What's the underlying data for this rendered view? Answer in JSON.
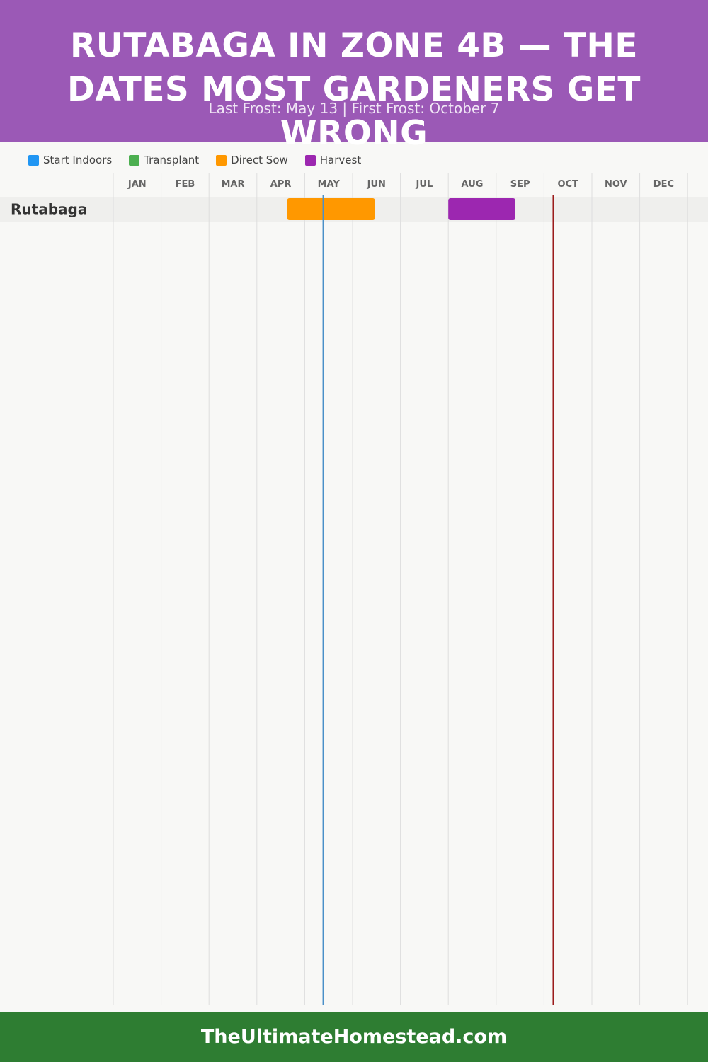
{
  "header": {
    "title": "RUTABAGA IN ZONE 4B — THE DATES MOST GARDENERS GET WRONG",
    "subtitle": "Last Frost: May 13 | First Frost: October 7"
  },
  "legend": [
    {
      "label": "Start Indoors",
      "color": "#2196f3"
    },
    {
      "label": "Transplant",
      "color": "#4caf50"
    },
    {
      "label": "Direct Sow",
      "color": "#ff9800"
    },
    {
      "label": "Harvest",
      "color": "#9c27b0"
    }
  ],
  "chart_data": {
    "type": "gantt",
    "months": [
      "JAN",
      "FEB",
      "MAR",
      "APR",
      "MAY",
      "JUN",
      "JUL",
      "AUG",
      "SEP",
      "OCT",
      "NOV",
      "DEC"
    ],
    "rows": [
      {
        "crop": "Rutabaga",
        "bars": [
          {
            "phase": "Direct Sow",
            "start": "Apr 20",
            "end": "Jun 15",
            "color": "#ff9800"
          },
          {
            "phase": "Harvest",
            "start": "Aug 1",
            "end": "Sep 13",
            "color": "#9c27b0"
          }
        ]
      }
    ],
    "markers": [
      {
        "name": "Last Frost",
        "date": "May 13",
        "color": "#4a90c8"
      },
      {
        "name": "First Frost",
        "date": "Oct 7",
        "color": "#9b1c1c"
      }
    ]
  },
  "footer": {
    "site": "TheUltimateHomestead.com"
  }
}
